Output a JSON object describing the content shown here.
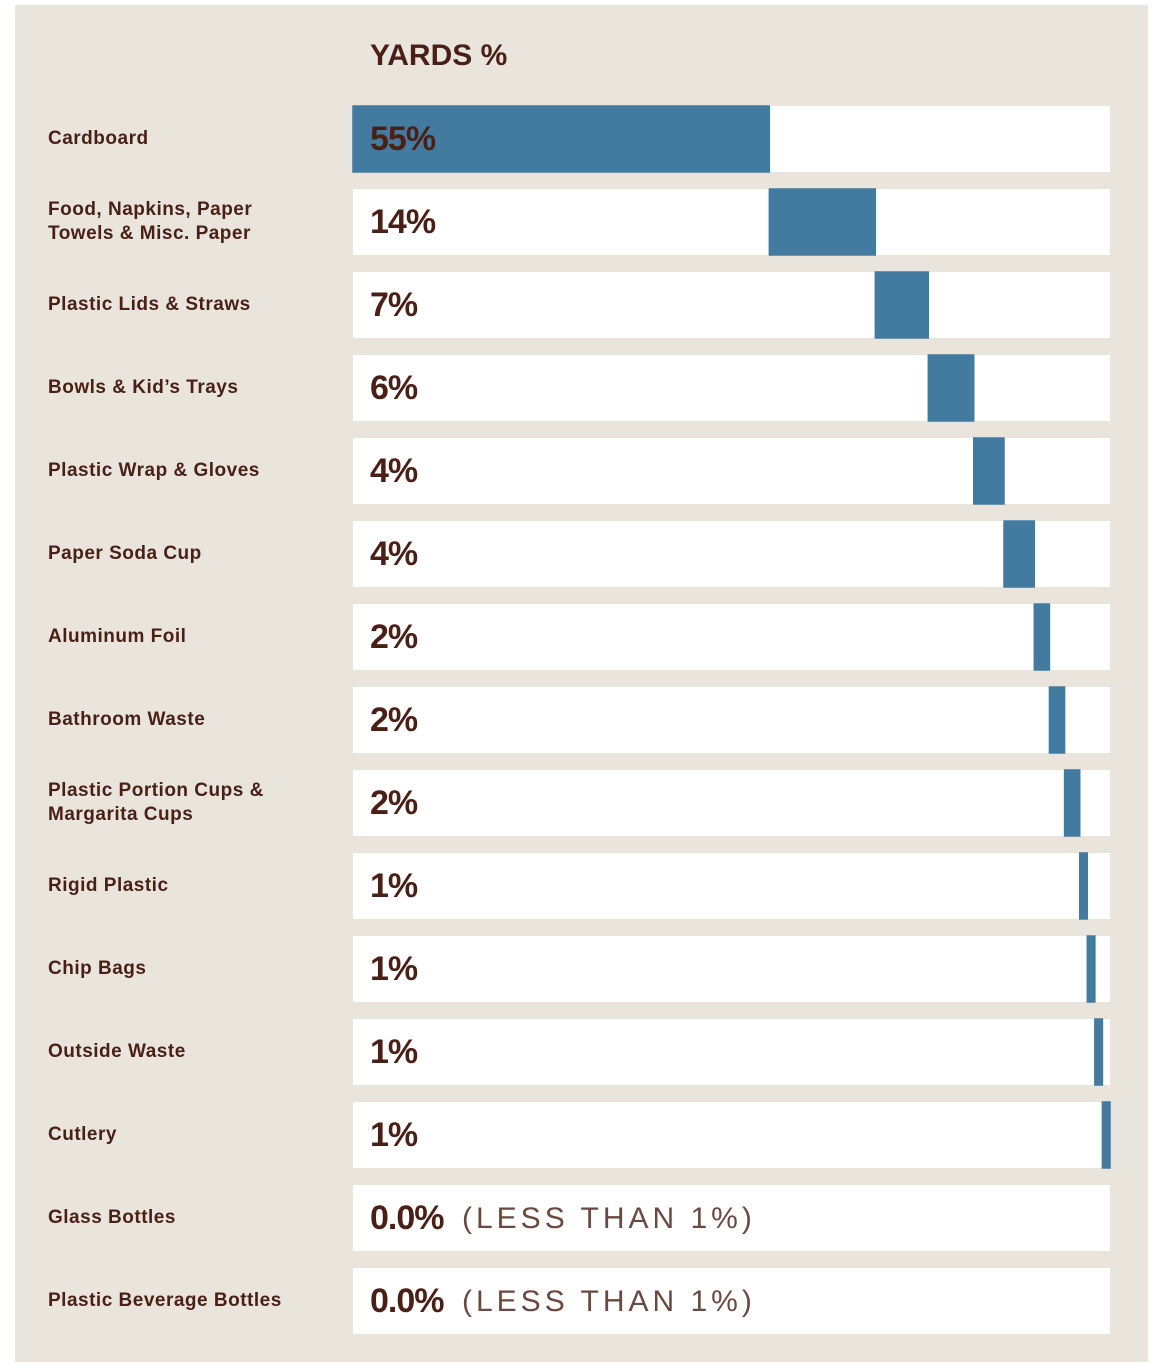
{
  "chart_data": {
    "type": "waterfall",
    "title": "YARDS %",
    "categories": [
      "Cardboard",
      "Food, Napkins, Paper\nTowels & Misc. Paper",
      "Plastic Lids & Straws",
      "Bowls & Kid’s Trays",
      "Plastic Wrap & Gloves",
      "Paper Soda Cup",
      "Aluminum Foil",
      "Bathroom Waste",
      "Plastic Portion Cups &\nMargarita Cups",
      "Rigid Plastic",
      "Chip Bags",
      "Outside Waste",
      "Cutlery",
      "Glass Bottles",
      "Plastic Beverage Bottles"
    ],
    "values": [
      55,
      14,
      7,
      6,
      4,
      4,
      2,
      2,
      2,
      1,
      1,
      1,
      1,
      0,
      0
    ],
    "value_labels": [
      "55%",
      "14%",
      "7%",
      "6%",
      "4%",
      "4%",
      "2%",
      "2%",
      "2%",
      "1%",
      "1%",
      "1%",
      "1%",
      "0.0%",
      "0.0%"
    ],
    "value_notes": [
      null,
      null,
      null,
      null,
      null,
      null,
      null,
      null,
      null,
      null,
      null,
      null,
      null,
      "(LESS THAN 1%)",
      "(LESS THAN 1%)"
    ],
    "color": "#437ba0",
    "xlim": [
      0,
      100
    ]
  }
}
